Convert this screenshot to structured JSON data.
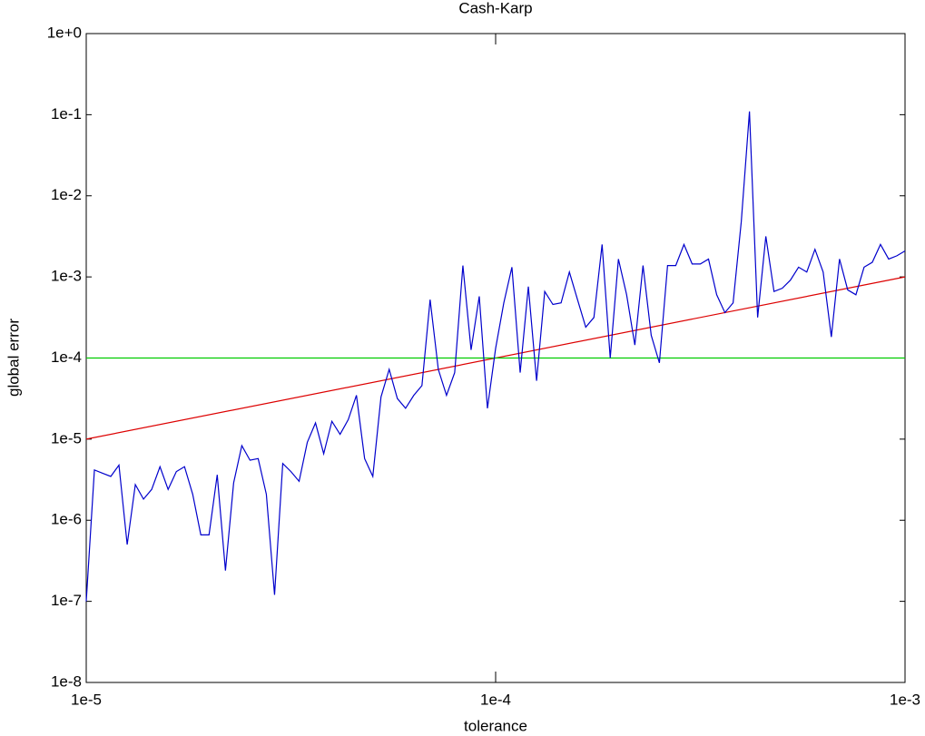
{
  "chart_data": {
    "type": "line",
    "title": "Cash-Karp",
    "x_label": "tolerance",
    "y_label": "global error",
    "xscale": "log",
    "yscale": "log",
    "xlim": [
      1e-05,
      0.001
    ],
    "ylim": [
      1e-08,
      1
    ],
    "xticks": [
      {
        "value": 1e-05,
        "label": "1e-5"
      },
      {
        "value": 0.0001,
        "label": "1e-4"
      },
      {
        "value": 0.001,
        "label": "1e-3"
      }
    ],
    "yticks": [
      {
        "value": 1e-08,
        "label": "1e-8"
      },
      {
        "value": 1e-07,
        "label": "1e-7"
      },
      {
        "value": 1e-06,
        "label": "1e-6"
      },
      {
        "value": 1e-05,
        "label": "1e-5"
      },
      {
        "value": 0.0001,
        "label": "1e-4"
      },
      {
        "value": 0.001,
        "label": "1e-3"
      },
      {
        "value": 0.01,
        "label": "1e-2"
      },
      {
        "value": 0.1,
        "label": "1e-1"
      },
      {
        "value": 1,
        "label": "1e+0"
      }
    ],
    "series": [
      {
        "color": "#0000cc",
        "x": [
          1e-05,
          1.047e-05,
          1.096e-05,
          1.148e-05,
          1.202e-05,
          1.259e-05,
          1.318e-05,
          1.38e-05,
          1.445e-05,
          1.514e-05,
          1.585e-05,
          1.66e-05,
          1.738e-05,
          1.82e-05,
          1.905e-05,
          1.995e-05,
          2.089e-05,
          2.188e-05,
          2.291e-05,
          2.399e-05,
          2.512e-05,
          2.63e-05,
          2.754e-05,
          2.884e-05,
          3.02e-05,
          3.162e-05,
          3.311e-05,
          3.467e-05,
          3.631e-05,
          3.802e-05,
          3.981e-05,
          4.169e-05,
          4.365e-05,
          4.571e-05,
          4.786e-05,
          5.012e-05,
          5.248e-05,
          5.495e-05,
          5.754e-05,
          6.026e-05,
          6.31e-05,
          6.607e-05,
          6.918e-05,
          7.244e-05,
          7.586e-05,
          7.943e-05,
          8.318e-05,
          8.71e-05,
          9.12e-05,
          9.55e-05,
          0.0001,
          0.0001047,
          0.0001096,
          0.0001148,
          0.0001202,
          0.0001259,
          0.0001318,
          0.000138,
          0.0001445,
          0.0001514,
          0.0001585,
          0.000166,
          0.0001738,
          0.000182,
          0.0001905,
          0.0001995,
          0.0002089,
          0.0002188,
          0.0002291,
          0.0002399,
          0.0002512,
          0.000263,
          0.0002754,
          0.0002884,
          0.000302,
          0.0003162,
          0.0003311,
          0.0003467,
          0.0003631,
          0.0003802,
          0.0003981,
          0.0004169,
          0.0004365,
          0.0004571,
          0.0004786,
          0.0005012,
          0.0005248,
          0.0005495,
          0.0005754,
          0.0006026,
          0.000631,
          0.0006607,
          0.0006918,
          0.0007244,
          0.0007586,
          0.0007943,
          0.0008318,
          0.000871,
          0.000912,
          0.000955,
          0.001
        ],
        "values": [
          1e-07,
          4.169e-06,
          3.802e-06,
          3.467e-06,
          4.786e-06,
          5.012e-07,
          2.754e-06,
          1.82e-06,
          2.399e-06,
          4.571e-06,
          2.399e-06,
          3.981e-06,
          4.571e-06,
          2.089e-06,
          6.607e-07,
          6.607e-07,
          3.631e-06,
          2.399e-07,
          2.884e-06,
          8.318e-06,
          5.495e-06,
          5.754e-06,
          2.089e-06,
          1.202e-07,
          5.012e-06,
          3.981e-06,
          3.02e-06,
          9.12e-06,
          1.585e-05,
          6.607e-06,
          1.66e-05,
          1.148e-05,
          1.738e-05,
          3.467e-05,
          5.754e-06,
          3.467e-06,
          3.311e-05,
          7.244e-05,
          3.162e-05,
          2.399e-05,
          3.467e-05,
          4.571e-05,
          0.0005248,
          7.244e-05,
          3.467e-05,
          6.607e-05,
          0.00138,
          0.0001259,
          0.0005754,
          2.399e-05,
          0.0001318,
          0.0004786,
          0.001318,
          6.607e-05,
          0.0007586,
          5.248e-05,
          0.0006607,
          0.0004571,
          0.0004786,
          0.001148,
          0.0005248,
          0.0002399,
          0.0003162,
          0.002512,
          0.0001,
          0.00166,
          0.0006026,
          0.0001445,
          0.00138,
          0.0001905,
          8.71e-05,
          0.00138,
          0.00138,
          0.002512,
          0.001445,
          0.001445,
          0.00166,
          0.0006026,
          0.0003631,
          0.0004786,
          0.004786,
          0.1096,
          0.0003162,
          0.003162,
          0.0006607,
          0.0007244,
          0.000912,
          0.001318,
          0.001148,
          0.002188,
          0.001148,
          0.000182,
          0.00166,
          0.0006918,
          0.0006026,
          0.001318,
          0.001514,
          0.002512,
          0.00166,
          0.00182,
          0.002089
        ]
      },
      {
        "color": "#dd0000",
        "x": [
          1e-05,
          0.001
        ],
        "values": [
          1e-05,
          0.001
        ]
      },
      {
        "color": "#00cc00",
        "x": [
          1e-05,
          0.001
        ],
        "values": [
          0.0001,
          0.0001
        ]
      }
    ]
  }
}
